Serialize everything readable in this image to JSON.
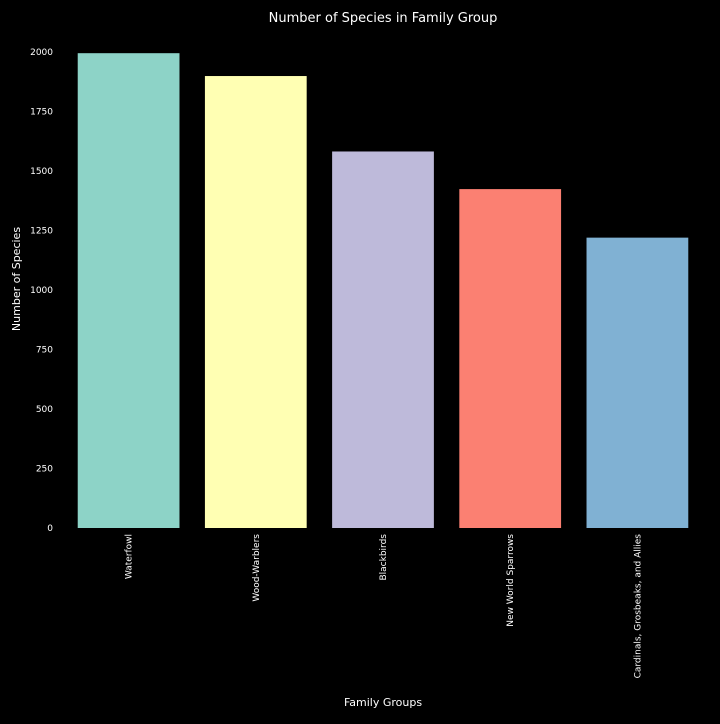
{
  "chart_data": {
    "type": "bar",
    "title": "Number of Species in Family Group",
    "xlabel": "Family Groups",
    "ylabel": "Number of Species",
    "categories": [
      "Waterfowl",
      "Wood-Warblers",
      "Blackbirds",
      "New World Sparrows",
      "Cardinals, Grosbeaks, and Allies"
    ],
    "values": [
      1995,
      1899,
      1582,
      1424,
      1220
    ],
    "colors": [
      "#8dd3c7",
      "#ffffb3",
      "#bebada",
      "#fb8072",
      "#80b1d3"
    ],
    "ylim": [
      0,
      2000
    ],
    "yticks": [
      "0",
      "250",
      "500",
      "750",
      "1000",
      "1250",
      "1500",
      "1750",
      "2000"
    ],
    "grid": false,
    "background": "#000000",
    "text_color": "#ffffff"
  }
}
